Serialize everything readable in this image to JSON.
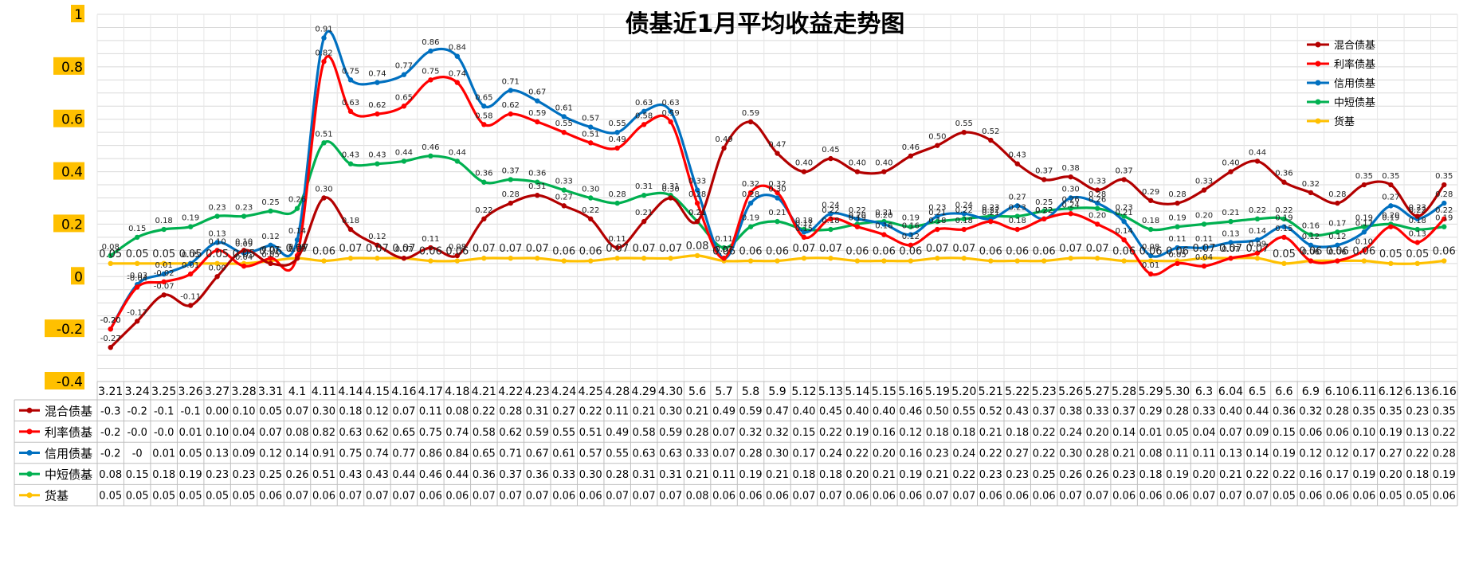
{
  "chart_data": {
    "type": "line",
    "title": "债基近1月平均收益走势图",
    "xlabel": "",
    "ylabel": "",
    "ylim": [
      -0.4,
      1
    ],
    "y_ticks": [
      "-0.4",
      "-0.2",
      "0",
      "0.2",
      "0.4",
      "0.6",
      "0.8",
      "1"
    ],
    "grid": true,
    "legend_position": "top-right",
    "has_data_table": true,
    "categories": [
      "3.21",
      "3.24",
      "3.25",
      "3.26",
      "3.27",
      "3.28",
      "3.31",
      "4.1",
      "4.11",
      "4.14",
      "4.15",
      "4.16",
      "4.17",
      "4.18",
      "4.21",
      "4.22",
      "4.23",
      "4.24",
      "4.25",
      "4.28",
      "4.29",
      "4.30",
      "5.6",
      "5.7",
      "5.8",
      "5.9",
      "5.12",
      "5.13",
      "5.14",
      "5.15",
      "5.16",
      "5.19",
      "5.20",
      "5.21",
      "5.22",
      "5.23",
      "5.26",
      "5.27",
      "5.28",
      "5.29",
      "5.30",
      "6.3",
      "6.04",
      "6.5",
      "6.6",
      "6.9",
      "6.10",
      "6.11",
      "6.12",
      "6.13",
      "6.16"
    ],
    "series": [
      {
        "name": "混合债基",
        "color": "#b30000",
        "values": [
          -0.27,
          -0.17,
          -0.07,
          -0.11,
          0.0,
          0.1,
          0.05,
          0.07,
          0.3,
          0.18,
          0.12,
          0.07,
          0.11,
          0.08,
          0.22,
          0.28,
          0.31,
          0.27,
          0.22,
          0.11,
          0.21,
          0.3,
          0.21,
          0.49,
          0.59,
          0.47,
          0.4,
          0.45,
          0.4,
          0.4,
          0.46,
          0.5,
          0.55,
          0.52,
          0.43,
          0.37,
          0.38,
          0.33,
          0.37,
          0.29,
          0.28,
          0.33,
          0.4,
          0.44,
          0.36,
          0.32,
          0.28,
          0.35,
          0.35,
          0.23,
          0.35
        ],
        "point_labels": [
          "-0.27",
          "-0.17",
          "-0.07",
          "-0.11",
          "0.00",
          "0.10",
          "0.05",
          "0.07",
          "0.30",
          "0.18",
          "0.12",
          "0.07",
          "0.11",
          "0.08",
          "0.22",
          "0.28",
          "0.31",
          "0.27",
          "0.22",
          "0.11",
          "0.21",
          "0.30",
          "0.21",
          "0.49",
          "0.59",
          "0.47",
          "0.40",
          "0.45",
          "0.40",
          "0.40",
          "0.46",
          "0.50",
          "0.55",
          "0.52",
          "0.43",
          "0.37",
          "0.38",
          "0.33",
          "0.37",
          "0.29",
          "0.28",
          "0.33",
          "0.40",
          "0.44",
          "0.36",
          "0.32",
          "0.28",
          "0.35",
          "0.35",
          "0.23",
          "0.35"
        ],
        "table_values": [
          "-0.3",
          "-0.2",
          "-0.1",
          "-0.1",
          "0.00",
          "0.10",
          "0.05",
          "0.07",
          "0.30",
          "0.18",
          "0.12",
          "0.07",
          "0.11",
          "0.08",
          "0.22",
          "0.28",
          "0.31",
          "0.27",
          "0.22",
          "0.11",
          "0.21",
          "0.30",
          "0.21",
          "0.49",
          "0.59",
          "0.47",
          "0.40",
          "0.45",
          "0.40",
          "0.40",
          "0.46",
          "0.50",
          "0.55",
          "0.52",
          "0.43",
          "0.37",
          "0.38",
          "0.33",
          "0.37",
          "0.29",
          "0.28",
          "0.33",
          "0.40",
          "0.44",
          "0.36",
          "0.32",
          "0.28",
          "0.35",
          "0.35",
          "0.23",
          "0.35"
        ]
      },
      {
        "name": "利率债基",
        "color": "#ff0000",
        "values": [
          -0.2,
          -0.04,
          -0.02,
          0.01,
          0.1,
          0.04,
          0.07,
          0.08,
          0.82,
          0.63,
          0.62,
          0.65,
          0.75,
          0.74,
          0.58,
          0.62,
          0.59,
          0.55,
          0.51,
          0.49,
          0.58,
          0.59,
          0.28,
          0.07,
          0.32,
          0.32,
          0.15,
          0.22,
          0.19,
          0.16,
          0.12,
          0.18,
          0.18,
          0.21,
          0.18,
          0.22,
          0.24,
          0.2,
          0.14,
          0.01,
          0.05,
          0.04,
          0.07,
          0.09,
          0.15,
          0.06,
          0.06,
          0.1,
          0.19,
          0.13,
          0.22
        ],
        "point_labels": [
          "-0.20",
          "-0.04",
          "-0.02",
          "0.01",
          "0.10",
          "0.04",
          "0.07",
          "0.08",
          "0.82",
          "0.63",
          "0.62",
          "0.65",
          "0.75",
          "0.74",
          "0.58",
          "0.62",
          "0.59",
          "0.55",
          "0.51",
          "0.49",
          "0.58",
          "0.59",
          "0.28",
          "0.07",
          "0.32",
          "0.32",
          "0.15",
          "0.22",
          "0.19",
          "0.16",
          "0.12",
          "0.18",
          "0.18",
          "0.21",
          "0.18",
          "0.22",
          "0.24",
          "0.20",
          "0.14",
          "0.01",
          "0.05",
          "0.04",
          "0.07",
          "0.09",
          "0.15",
          "0.06",
          "0.06",
          "0.10",
          "0.19",
          "0.13",
          "0.22"
        ],
        "table_values": [
          "-0.2",
          "-0.0",
          "-0.0",
          "0.01",
          "0.10",
          "0.04",
          "0.07",
          "0.08",
          "0.82",
          "0.63",
          "0.62",
          "0.65",
          "0.75",
          "0.74",
          "0.58",
          "0.62",
          "0.59",
          "0.55",
          "0.51",
          "0.49",
          "0.58",
          "0.59",
          "0.28",
          "0.07",
          "0.32",
          "0.32",
          "0.15",
          "0.22",
          "0.19",
          "0.16",
          "0.12",
          "0.18",
          "0.18",
          "0.21",
          "0.18",
          "0.22",
          "0.24",
          "0.20",
          "0.14",
          "0.01",
          "0.05",
          "0.04",
          "0.07",
          "0.09",
          "0.15",
          "0.06",
          "0.06",
          "0.10",
          "0.19",
          "0.13",
          "0.22"
        ]
      },
      {
        "name": "信用债基",
        "color": "#0070c0",
        "values": [
          -0.2,
          -0.03,
          0.01,
          0.05,
          0.13,
          0.09,
          0.12,
          0.14,
          0.91,
          0.75,
          0.74,
          0.77,
          0.86,
          0.84,
          0.65,
          0.71,
          0.67,
          0.61,
          0.57,
          0.55,
          0.63,
          0.63,
          0.33,
          0.07,
          0.28,
          0.3,
          0.17,
          0.24,
          0.22,
          0.2,
          0.16,
          0.23,
          0.24,
          0.22,
          0.27,
          0.22,
          0.3,
          0.28,
          0.21,
          0.08,
          0.11,
          0.11,
          0.13,
          0.14,
          0.19,
          0.12,
          0.12,
          0.17,
          0.27,
          0.22,
          0.28
        ],
        "point_labels": [
          "-0.20",
          "-0.03",
          "0.01",
          "0.05",
          "0.13",
          "0.09",
          "0.12",
          "0.14",
          "0.91",
          "0.75",
          "0.74",
          "0.77",
          "0.86",
          "0.84",
          "0.65",
          "0.71",
          "0.67",
          "0.61",
          "0.57",
          "0.55",
          "0.63",
          "0.63",
          "0.33",
          "0.07",
          "0.28",
          "0.30",
          "0.17",
          "0.24",
          "0.22",
          "0.20",
          "0.16",
          "0.23",
          "0.24",
          "0.22",
          "0.27",
          "0.22",
          "0.30",
          "0.28",
          "0.21",
          "0.08",
          "0.11",
          "0.11",
          "0.13",
          "0.14",
          "0.19",
          "0.12",
          "0.12",
          "0.17",
          "0.27",
          "0.22",
          "0.28"
        ],
        "table_values": [
          "-0.2",
          "-0",
          "0.01",
          "0.05",
          "0.13",
          "0.09",
          "0.12",
          "0.14",
          "0.91",
          "0.75",
          "0.74",
          "0.77",
          "0.86",
          "0.84",
          "0.65",
          "0.71",
          "0.67",
          "0.61",
          "0.57",
          "0.55",
          "0.63",
          "0.63",
          "0.33",
          "0.07",
          "0.28",
          "0.30",
          "0.17",
          "0.24",
          "0.22",
          "0.20",
          "0.16",
          "0.23",
          "0.24",
          "0.22",
          "0.27",
          "0.22",
          "0.30",
          "0.28",
          "0.21",
          "0.08",
          "0.11",
          "0.11",
          "0.13",
          "0.14",
          "0.19",
          "0.12",
          "0.12",
          "0.17",
          "0.27",
          "0.22",
          "0.28"
        ]
      },
      {
        "name": "中短债基",
        "color": "#00b050",
        "values": [
          0.08,
          0.15,
          0.18,
          0.19,
          0.23,
          0.23,
          0.25,
          0.26,
          0.51,
          0.43,
          0.43,
          0.44,
          0.46,
          0.44,
          0.36,
          0.37,
          0.36,
          0.33,
          0.3,
          0.28,
          0.31,
          0.31,
          0.21,
          0.11,
          0.19,
          0.21,
          0.18,
          0.18,
          0.2,
          0.21,
          0.19,
          0.21,
          0.22,
          0.23,
          0.23,
          0.25,
          0.26,
          0.26,
          0.23,
          0.18,
          0.19,
          0.2,
          0.21,
          0.22,
          0.22,
          0.16,
          0.17,
          0.19,
          0.2,
          0.18,
          0.19
        ],
        "point_labels": [
          "0.08",
          "0.15",
          "0.18",
          "0.19",
          "0.23",
          "0.23",
          "0.25",
          "0.26",
          "0.51",
          "0.43",
          "0.43",
          "0.44",
          "0.46",
          "0.44",
          "0.36",
          "0.37",
          "0.36",
          "0.33",
          "0.30",
          "0.28",
          "0.31",
          "0.31",
          "0.21",
          "0.11",
          "0.19",
          "0.21",
          "0.18",
          "0.18",
          "0.20",
          "0.21",
          "0.19",
          "0.21",
          "0.22",
          "0.23",
          "0.23",
          "0.25",
          "0.26",
          "0.26",
          "0.23",
          "0.18",
          "0.19",
          "0.20",
          "0.21",
          "0.22",
          "0.22",
          "0.16",
          "0.17",
          "0.19",
          "0.20",
          "0.18",
          "0.19"
        ],
        "table_values": [
          "0.08",
          "0.15",
          "0.18",
          "0.19",
          "0.23",
          "0.23",
          "0.25",
          "0.26",
          "0.51",
          "0.43",
          "0.43",
          "0.44",
          "0.46",
          "0.44",
          "0.36",
          "0.37",
          "0.36",
          "0.33",
          "0.30",
          "0.28",
          "0.31",
          "0.31",
          "0.21",
          "0.11",
          "0.19",
          "0.21",
          "0.18",
          "0.18",
          "0.20",
          "0.21",
          "0.19",
          "0.21",
          "0.22",
          "0.23",
          "0.23",
          "0.25",
          "0.26",
          "0.26",
          "0.23",
          "0.18",
          "0.19",
          "0.20",
          "0.21",
          "0.22",
          "0.22",
          "0.16",
          "0.17",
          "0.19",
          "0.20",
          "0.18",
          "0.19"
        ]
      },
      {
        "name": "货基",
        "color": "#ffc000",
        "values": [
          0.05,
          0.05,
          0.05,
          0.05,
          0.05,
          0.05,
          0.06,
          0.07,
          0.06,
          0.07,
          0.07,
          0.07,
          0.06,
          0.06,
          0.07,
          0.07,
          0.07,
          0.06,
          0.06,
          0.07,
          0.07,
          0.07,
          0.08,
          0.06,
          0.06,
          0.06,
          0.07,
          0.07,
          0.06,
          0.06,
          0.06,
          0.07,
          0.07,
          0.06,
          0.06,
          0.06,
          0.07,
          0.07,
          0.06,
          0.06,
          0.06,
          0.07,
          0.07,
          0.07,
          0.05,
          0.06,
          0.06,
          0.06,
          0.05,
          0.05,
          0.06
        ],
        "point_labels": [
          "0.05",
          "0.05",
          "0.05",
          "0.05",
          "0.05",
          "0.05",
          "0.06",
          "0.07",
          "0.06",
          "0.07",
          "0.07",
          "0.07",
          "0.06",
          "0.06",
          "0.07",
          "0.07",
          "0.07",
          "0.06",
          "0.06",
          "0.07",
          "0.07",
          "0.07",
          "0.08",
          "0.06",
          "0.06",
          "0.06",
          "0.07",
          "0.07",
          "0.06",
          "0.06",
          "0.06",
          "0.07",
          "0.07",
          "0.06",
          "0.06",
          "0.06",
          "0.07",
          "0.07",
          "0.06",
          "0.06",
          "0.06",
          "0.07",
          "0.07",
          "0.07",
          "0.05",
          "0.06",
          "0.06",
          "0.06",
          "0.05",
          "0.05",
          "0.06"
        ],
        "table_values": [
          "0.05",
          "0.05",
          "0.05",
          "0.05",
          "0.05",
          "0.05",
          "0.06",
          "0.07",
          "0.06",
          "0.07",
          "0.07",
          "0.07",
          "0.06",
          "0.06",
          "0.07",
          "0.07",
          "0.07",
          "0.06",
          "0.06",
          "0.07",
          "0.07",
          "0.07",
          "0.08",
          "0.06",
          "0.06",
          "0.06",
          "0.07",
          "0.07",
          "0.06",
          "0.06",
          "0.06",
          "0.07",
          "0.07",
          "0.06",
          "0.06",
          "0.06",
          "0.07",
          "0.07",
          "0.06",
          "0.06",
          "0.06",
          "0.07",
          "0.07",
          "0.07",
          "0.05",
          "0.06",
          "0.06",
          "0.06",
          "0.05",
          "0.05",
          "0.06"
        ]
      }
    ]
  }
}
